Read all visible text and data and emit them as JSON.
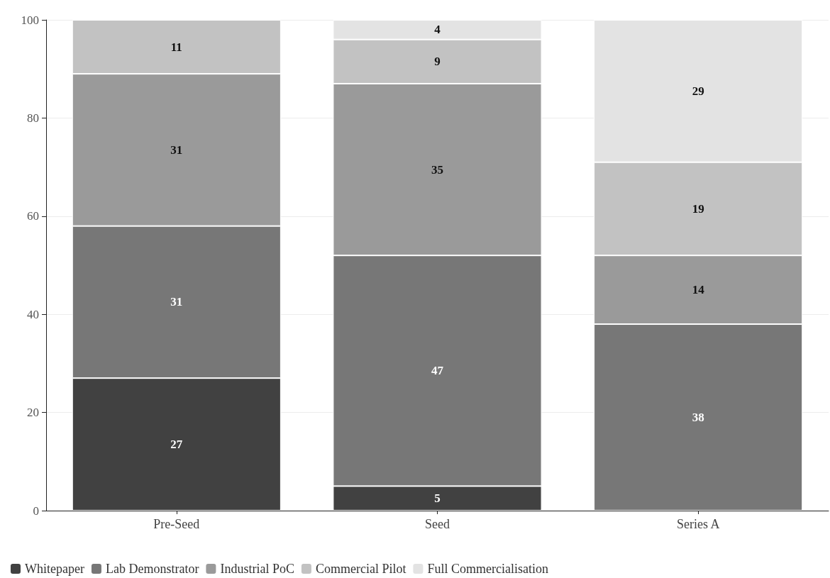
{
  "chart_data": {
    "type": "bar",
    "stacked": true,
    "categories": [
      "Pre-Seed",
      "Seed",
      "Series A"
    ],
    "series": [
      {
        "name": "Whitepaper",
        "color": "#414141",
        "values": [
          27,
          5,
          null
        ]
      },
      {
        "name": "Lab Demonstrator",
        "color": "#777777",
        "values": [
          31,
          47,
          38
        ]
      },
      {
        "name": "Industrial PoC",
        "color": "#9a9a9a",
        "values": [
          31,
          35,
          14
        ]
      },
      {
        "name": "Commercial Pilot",
        "color": "#c2c2c2",
        "values": [
          11,
          9,
          19
        ]
      },
      {
        "name": "Full Commercialisation",
        "color": "#e3e3e3",
        "values": [
          null,
          4,
          29
        ]
      }
    ],
    "ylim": [
      0,
      100
    ],
    "yticks": [
      0,
      20,
      40,
      60,
      80,
      100
    ],
    "grid": "y",
    "legend": "bottom left",
    "data_labels": true
  }
}
